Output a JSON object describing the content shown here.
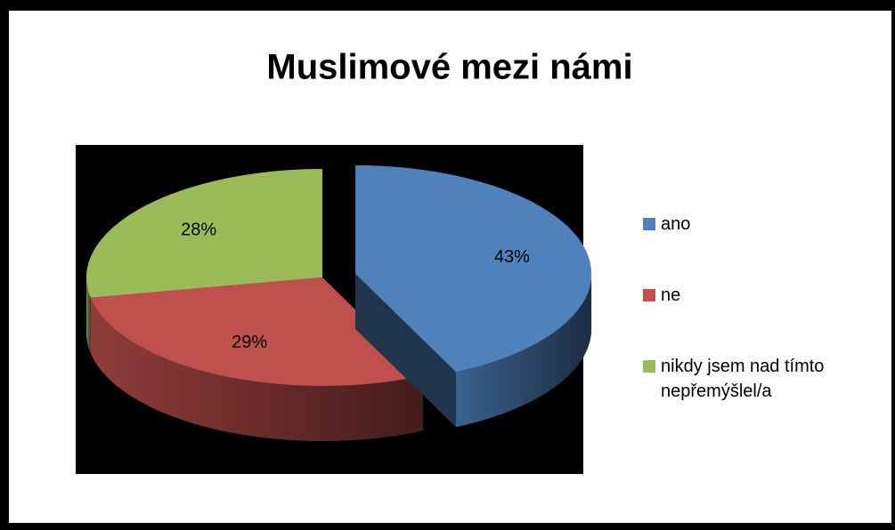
{
  "chart_data": {
    "type": "pie",
    "title": "Muslimové mezi námi",
    "categories": [
      "ano",
      "ne",
      "nikdy jsem nad tímto nepřemýšlel/a"
    ],
    "values": [
      43,
      29,
      28
    ],
    "value_labels": [
      "43%",
      "29%",
      "28%"
    ],
    "colors": [
      "#4f81bd",
      "#c0504d",
      "#9bbb59"
    ],
    "legend": "right"
  }
}
